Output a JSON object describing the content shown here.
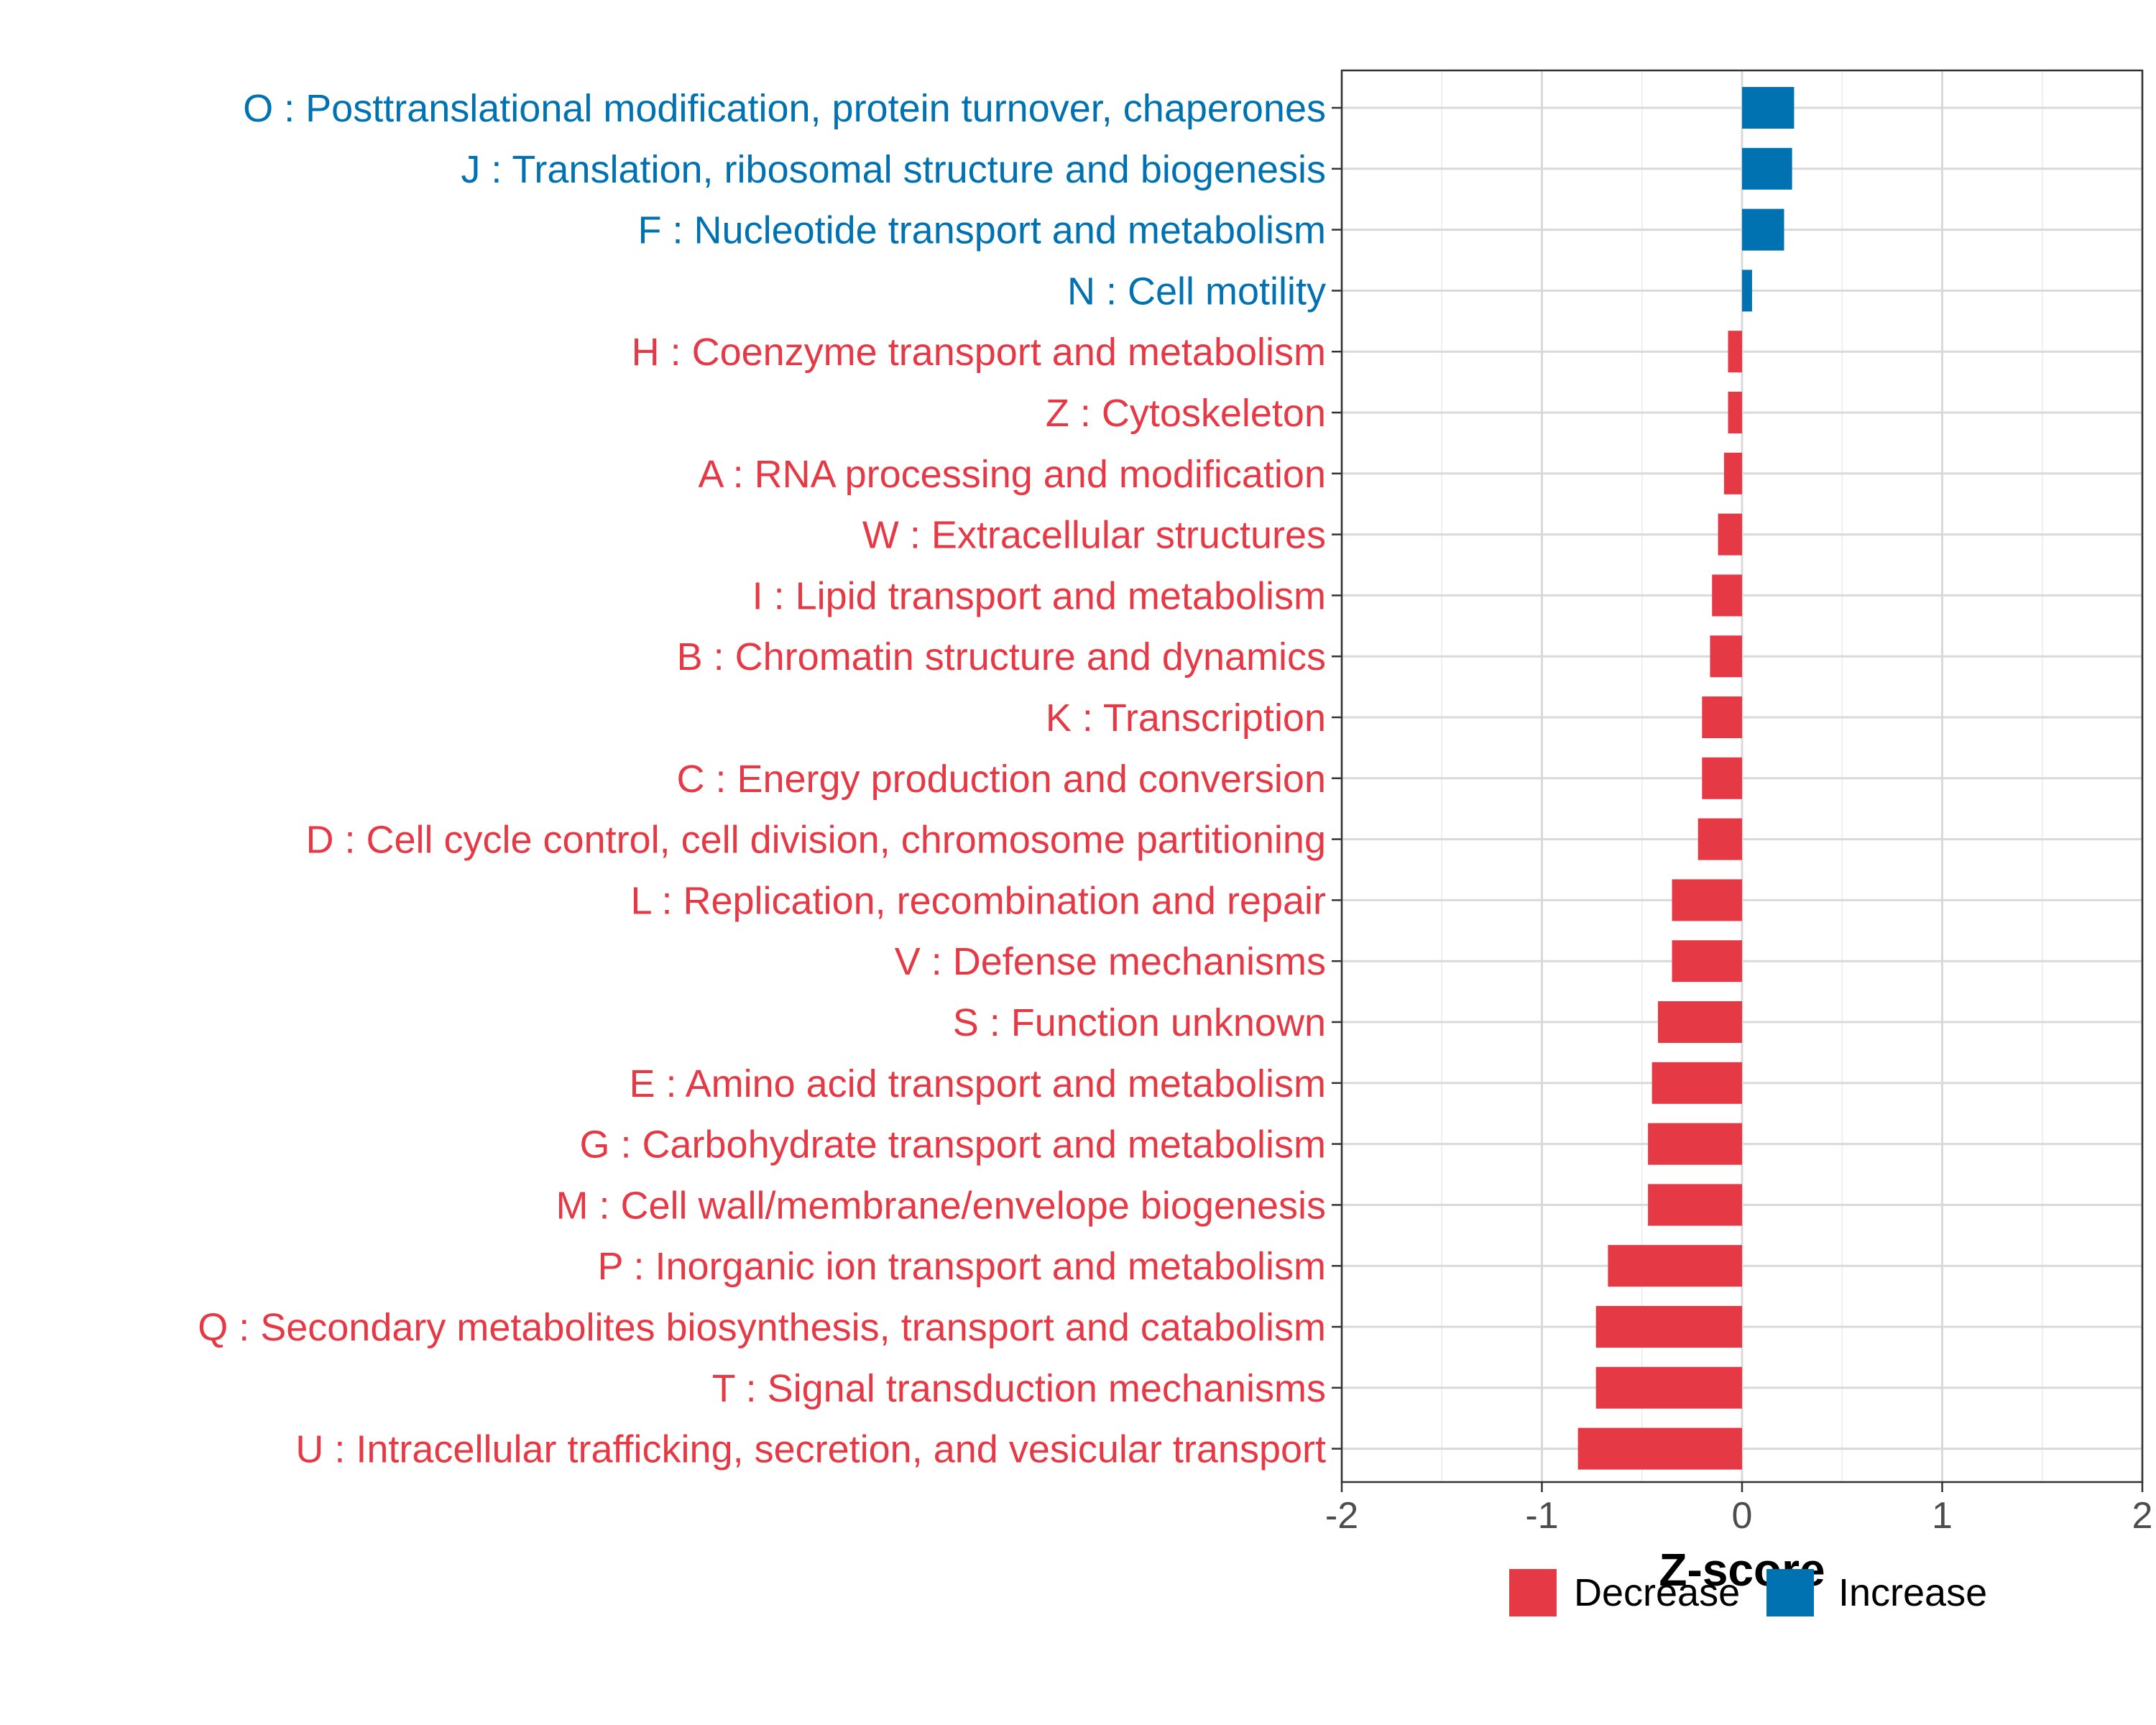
{
  "chart_data": {
    "type": "bar",
    "orientation": "horizontal",
    "xlabel": "Z-score",
    "xlim": [
      -2,
      2
    ],
    "xticks": [
      -2,
      -1,
      0,
      1,
      2
    ],
    "xtick_labels": [
      "-2",
      "-1",
      "0",
      "1",
      "2"
    ],
    "grid": true,
    "legend_position": "bottom",
    "colors": {
      "Decrease": "#e63946",
      "Increase": "#0072b2"
    },
    "legend": [
      {
        "key": "Decrease",
        "label": "Decrease"
      },
      {
        "key": "Increase",
        "label": "Increase"
      }
    ],
    "categories": [
      "O : Posttranslational modification, protein turnover, chaperones",
      "J : Translation, ribosomal structure and biogenesis",
      "F : Nucleotide transport and metabolism",
      "N : Cell motility",
      "H : Coenzyme transport and metabolism",
      "Z : Cytoskeleton",
      "A : RNA processing and modification",
      "W : Extracellular structures",
      "I : Lipid transport and metabolism",
      "B : Chromatin structure and dynamics",
      "K : Transcription",
      "C : Energy production and conversion",
      "D : Cell cycle control, cell division, chromosome partitioning",
      "L : Replication, recombination and repair",
      "V : Defense mechanisms",
      "S : Function unknown",
      "E : Amino acid transport and metabolism",
      "G : Carbohydrate transport and metabolism",
      "M : Cell wall/membrane/envelope biogenesis",
      "P : Inorganic ion transport and metabolism",
      "Q : Secondary metabolites biosynthesis, transport and catabolism",
      "T : Signal transduction mechanisms",
      "U : Intracellular trafficking, secretion, and vesicular transport"
    ],
    "values": [
      0.26,
      0.25,
      0.21,
      0.05,
      -0.07,
      -0.07,
      -0.09,
      -0.12,
      -0.15,
      -0.16,
      -0.2,
      -0.2,
      -0.22,
      -0.35,
      -0.35,
      -0.42,
      -0.45,
      -0.47,
      -0.47,
      -0.67,
      -0.73,
      -0.73,
      -0.82
    ],
    "groups": [
      "Increase",
      "Increase",
      "Increase",
      "Increase",
      "Decrease",
      "Decrease",
      "Decrease",
      "Decrease",
      "Decrease",
      "Decrease",
      "Decrease",
      "Decrease",
      "Decrease",
      "Decrease",
      "Decrease",
      "Decrease",
      "Decrease",
      "Decrease",
      "Decrease",
      "Decrease",
      "Decrease",
      "Decrease",
      "Decrease"
    ]
  }
}
